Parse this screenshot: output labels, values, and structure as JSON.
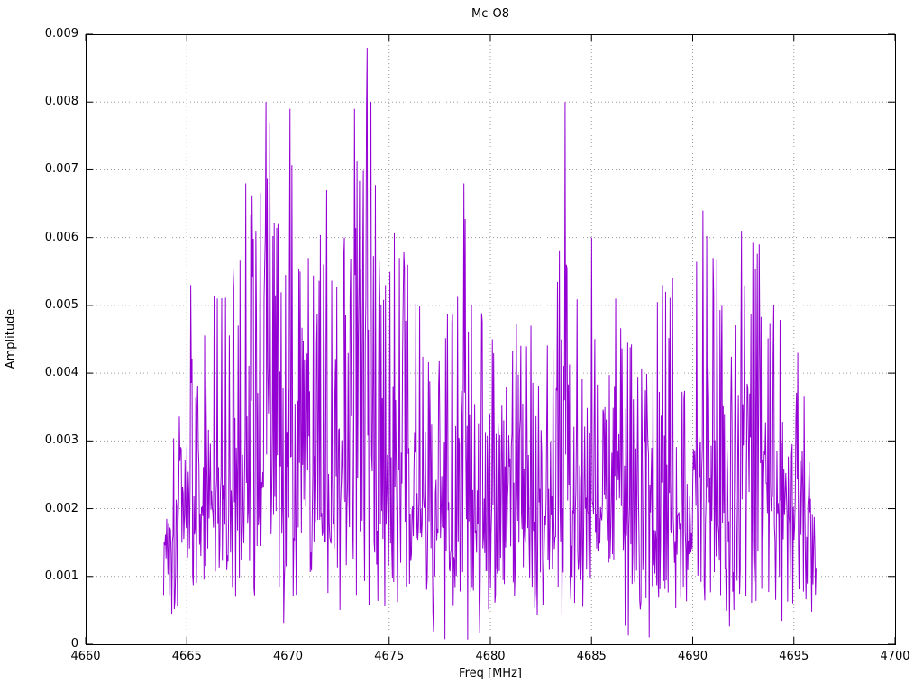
{
  "chart_data": {
    "type": "line",
    "title": "Mc-O8",
    "xlabel": "Freq [MHz]",
    "ylabel": "Amplitude",
    "xlim": [
      4660,
      4700
    ],
    "ylim": [
      0,
      0.009
    ],
    "xtick_labels": [
      "4660",
      "4665",
      "4670",
      "4675",
      "4680",
      "4685",
      "4690",
      "4695",
      "4700"
    ],
    "xtick_values": [
      4660,
      4665,
      4670,
      4675,
      4680,
      4685,
      4690,
      4695,
      4700
    ],
    "ytick_labels": [
      "0",
      "0.001",
      "0.002",
      "0.003",
      "0.004",
      "0.005",
      "0.006",
      "0.007",
      "0.008",
      "0.009"
    ],
    "ytick_values": [
      0,
      0.001,
      0.002,
      0.003,
      0.004,
      0.005,
      0.006,
      0.007,
      0.008,
      0.009
    ],
    "grid": "dotted",
    "legend": "none",
    "series_color": "#9400D3",
    "grid_color": "#9a9a9a",
    "axis_color": "#000000",
    "signal": {
      "description": "dense noise-like amplitude spectrum occupying approximately 4664-4696 MHz",
      "x_start": 4663.85,
      "x_end": 4696.1,
      "samples_per_mhz": 32,
      "seed": 1337,
      "noise_floor_range": [
        0.0004,
        0.002
      ],
      "spike_shape_exponent": 2.2,
      "deep_dip_probability": 0.012,
      "envelope_max": [
        [
          4663.85,
          0.0019
        ],
        [
          4664.3,
          0.003
        ],
        [
          4665.0,
          0.0053
        ],
        [
          4665.6,
          0.0047
        ],
        [
          4666.3,
          0.0052
        ],
        [
          4667.0,
          0.0051
        ],
        [
          4667.9,
          0.0068
        ],
        [
          4668.9,
          0.008
        ],
        [
          4669.6,
          0.0062
        ],
        [
          4670.1,
          0.0079
        ],
        [
          4670.8,
          0.0054
        ],
        [
          4671.9,
          0.0067
        ],
        [
          4672.5,
          0.0057
        ],
        [
          4673.3,
          0.0079
        ],
        [
          4673.9,
          0.0088
        ],
        [
          4674.5,
          0.0061
        ],
        [
          4675.3,
          0.0061
        ],
        [
          4676.0,
          0.0056
        ],
        [
          4676.8,
          0.0047
        ],
        [
          4677.6,
          0.0044
        ],
        [
          4678.7,
          0.0068
        ],
        [
          4679.5,
          0.0052
        ],
        [
          4680.3,
          0.0045
        ],
        [
          4681.2,
          0.0048
        ],
        [
          4682.2,
          0.0047
        ],
        [
          4683.0,
          0.0053
        ],
        [
          4683.7,
          0.008
        ],
        [
          4684.6,
          0.0053
        ],
        [
          4685.1,
          0.006
        ],
        [
          4686.0,
          0.0051
        ],
        [
          4686.8,
          0.0047
        ],
        [
          4687.6,
          0.0046
        ],
        [
          4688.5,
          0.0053
        ],
        [
          4689.2,
          0.0054
        ],
        [
          4690.0,
          0.0052
        ],
        [
          4690.5,
          0.0064
        ],
        [
          4691.2,
          0.0057
        ],
        [
          4692.0,
          0.0049
        ],
        [
          4692.5,
          0.0061
        ],
        [
          4693.3,
          0.0059
        ],
        [
          4694.0,
          0.005
        ],
        [
          4694.8,
          0.0047
        ],
        [
          4695.3,
          0.0043
        ],
        [
          4695.8,
          0.003
        ],
        [
          4696.1,
          0.001
        ]
      ],
      "notable_peaks": [
        [
          4665.2,
          0.0053
        ],
        [
          4666.5,
          0.0051
        ],
        [
          4667.9,
          0.0068
        ],
        [
          4668.4,
          0.0061
        ],
        [
          4668.9,
          0.008
        ],
        [
          4669.1,
          0.0077
        ],
        [
          4669.5,
          0.0062
        ],
        [
          4670.1,
          0.0079
        ],
        [
          4671.0,
          0.0057
        ],
        [
          4671.9,
          0.0067
        ],
        [
          4672.8,
          0.006
        ],
        [
          4673.3,
          0.0079
        ],
        [
          4673.9,
          0.0088
        ],
        [
          4674.1,
          0.008
        ],
        [
          4675.5,
          0.0057
        ],
        [
          4675.9,
          0.0056
        ],
        [
          4678.7,
          0.0068
        ],
        [
          4680.1,
          0.0045
        ],
        [
          4682.0,
          0.0047
        ],
        [
          4683.4,
          0.0058
        ],
        [
          4683.7,
          0.008
        ],
        [
          4685.0,
          0.006
        ],
        [
          4686.2,
          0.0051
        ],
        [
          4688.5,
          0.0053
        ],
        [
          4689.0,
          0.0054
        ],
        [
          4690.5,
          0.0064
        ],
        [
          4691.0,
          0.0057
        ],
        [
          4692.4,
          0.0061
        ],
        [
          4693.3,
          0.0059
        ],
        [
          4694.0,
          0.005
        ],
        [
          4695.2,
          0.0043
        ]
      ]
    }
  }
}
